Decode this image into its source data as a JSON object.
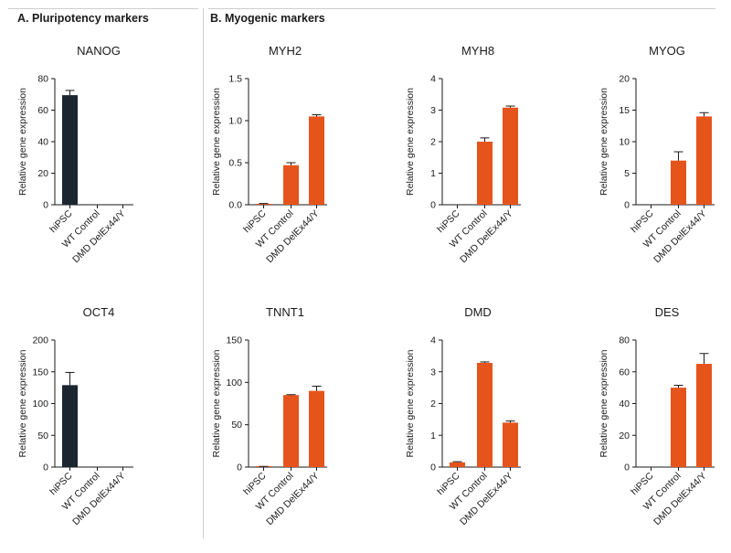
{
  "sections": {
    "a_title": "A. Pluripotency markers",
    "b_title": "B. Myogenic markers"
  },
  "colors": {
    "pluripotency": "#1c2631",
    "myogenic": "#e5541a",
    "axis": "#1a1a1a"
  },
  "chart_data": [
    {
      "type": "bar",
      "title": "NANOG",
      "ylabel": "Relative gene expression",
      "categories": [
        "hiPSC",
        "WT Control",
        "DMD DelEx44/Y"
      ],
      "values": [
        69.5,
        0,
        0
      ],
      "error": [
        3,
        0,
        0
      ],
      "ylim": [
        0,
        80
      ],
      "yticks": [
        "0",
        "20",
        "40",
        "60",
        "80"
      ],
      "grid": false
    },
    {
      "type": "bar",
      "title": "MYH2",
      "ylabel": "Relative gene expression",
      "categories": [
        "hiPSC",
        "WT Control",
        "DMD DelEx44/Y"
      ],
      "values": [
        0.01,
        0.47,
        1.05
      ],
      "error": [
        0.005,
        0.03,
        0.02
      ],
      "ylim": [
        0,
        1.5
      ],
      "yticks": [
        "0.0",
        "0.5",
        "1.0",
        "1.5"
      ],
      "grid": false
    },
    {
      "type": "bar",
      "title": "MYH8",
      "ylabel": "Relative gene expression",
      "categories": [
        "hiPSC",
        "WT Control",
        "DMD DelEx44/Y"
      ],
      "values": [
        0,
        2.0,
        3.08
      ],
      "error": [
        0,
        0.12,
        0.05
      ],
      "ylim": [
        0,
        4
      ],
      "yticks": [
        "0",
        "1",
        "2",
        "3",
        "4"
      ],
      "grid": false
    },
    {
      "type": "bar",
      "title": "MYOG",
      "ylabel": "Relative gene expression",
      "categories": [
        "hiPSC",
        "WT Control",
        "DMD DelEx44/Y"
      ],
      "values": [
        0,
        7.0,
        14.0
      ],
      "error": [
        0,
        1.4,
        0.6
      ],
      "ylim": [
        0,
        20
      ],
      "yticks": [
        "0",
        "5",
        "10",
        "15",
        "20"
      ],
      "grid": false
    },
    {
      "type": "bar",
      "title": "OCT4",
      "ylabel": "Relative gene expression",
      "categories": [
        "hiPSC",
        "WT Control",
        "DMD DelEx44/Y"
      ],
      "values": [
        129,
        0,
        0
      ],
      "error": [
        20,
        0,
        0
      ],
      "ylim": [
        0,
        200
      ],
      "yticks": [
        "0",
        "50",
        "100",
        "150",
        "200"
      ],
      "grid": false
    },
    {
      "type": "bar",
      "title": "TNNT1",
      "ylabel": "Relative gene expression",
      "categories": [
        "hiPSC",
        "WT Control",
        "DMD DelEx44/Y"
      ],
      "values": [
        0.5,
        85,
        90
      ],
      "error": [
        0.3,
        0.5,
        5.5
      ],
      "ylim": [
        0,
        150
      ],
      "yticks": [
        "0",
        "50",
        "100",
        "150"
      ],
      "grid": false
    },
    {
      "type": "bar",
      "title": "DMD",
      "ylabel": "Relative gene expression",
      "categories": [
        "hiPSC",
        "WT Control",
        "DMD DelEx44/Y"
      ],
      "values": [
        0.15,
        3.28,
        1.4
      ],
      "error": [
        0.02,
        0.03,
        0.05
      ],
      "ylim": [
        0,
        4
      ],
      "yticks": [
        "0",
        "1",
        "2",
        "3",
        "4"
      ],
      "grid": false
    },
    {
      "type": "bar",
      "title": "DES",
      "ylabel": "Relative gene expression",
      "categories": [
        "hiPSC",
        "WT Control",
        "DMD DelEx44/Y"
      ],
      "values": [
        0,
        50,
        65
      ],
      "error": [
        0,
        1.5,
        6.5
      ],
      "ylim": [
        0,
        80
      ],
      "yticks": [
        "0",
        "20",
        "40",
        "60",
        "80"
      ],
      "grid": false
    }
  ]
}
